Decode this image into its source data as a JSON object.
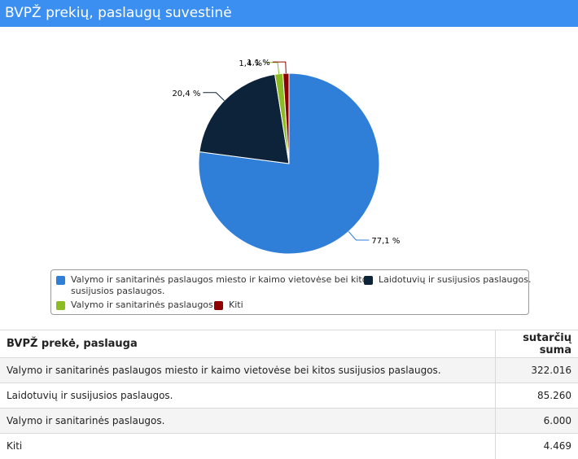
{
  "page": {
    "title": "BVPŽ prekių, paslaugų suvestinė"
  },
  "chart_data": {
    "type": "pie",
    "series": [
      {
        "name": "Valymo ir sanitarinės paslaugos miesto ir kaimo vietovėse bei kitos susijusios paslaugos.",
        "value": 322.016,
        "label": "77,1 %",
        "color": "#2f7ed8"
      },
      {
        "name": "Laidotuvių ir susijusios paslaugos.",
        "value": 85.26,
        "label": "20,4 %",
        "color": "#0d233a"
      },
      {
        "name": "Valymo ir sanitarinės paslaugos.",
        "value": 6.0,
        "label": "1,4 %",
        "color": "#8bbc21"
      },
      {
        "name": "Kiti",
        "value": 4.469,
        "label": "1,1 %",
        "color": "#910000"
      }
    ]
  },
  "legend": {
    "items": [
      {
        "line1": "Valymo ir sanitarinės paslaugos miesto ir kaimo vietovėse bei kitos",
        "line2": "susijusios paslaugos.",
        "color": "#2f7ed8"
      },
      {
        "line1": "Laidotuvių ir susijusios paslaugos.",
        "color": "#0d233a"
      },
      {
        "line1": "Valymo ir sanitarinės paslaugos.",
        "color": "#8bbc21"
      },
      {
        "line1": "Kiti",
        "color": "#910000"
      }
    ]
  },
  "table": {
    "headers": [
      "BVPŽ prekė, paslauga",
      "sutarčių suma"
    ],
    "rows": [
      [
        "Valymo ir sanitarinės paslaugos miesto ir kaimo vietovėse bei kitos susijusios paslaugos.",
        "322.016"
      ],
      [
        "Laidotuvių ir susijusios paslaugos.",
        "85.260"
      ],
      [
        "Valymo ir sanitarinės paslaugos.",
        "6.000"
      ],
      [
        "Kiti",
        "4.469"
      ]
    ]
  }
}
